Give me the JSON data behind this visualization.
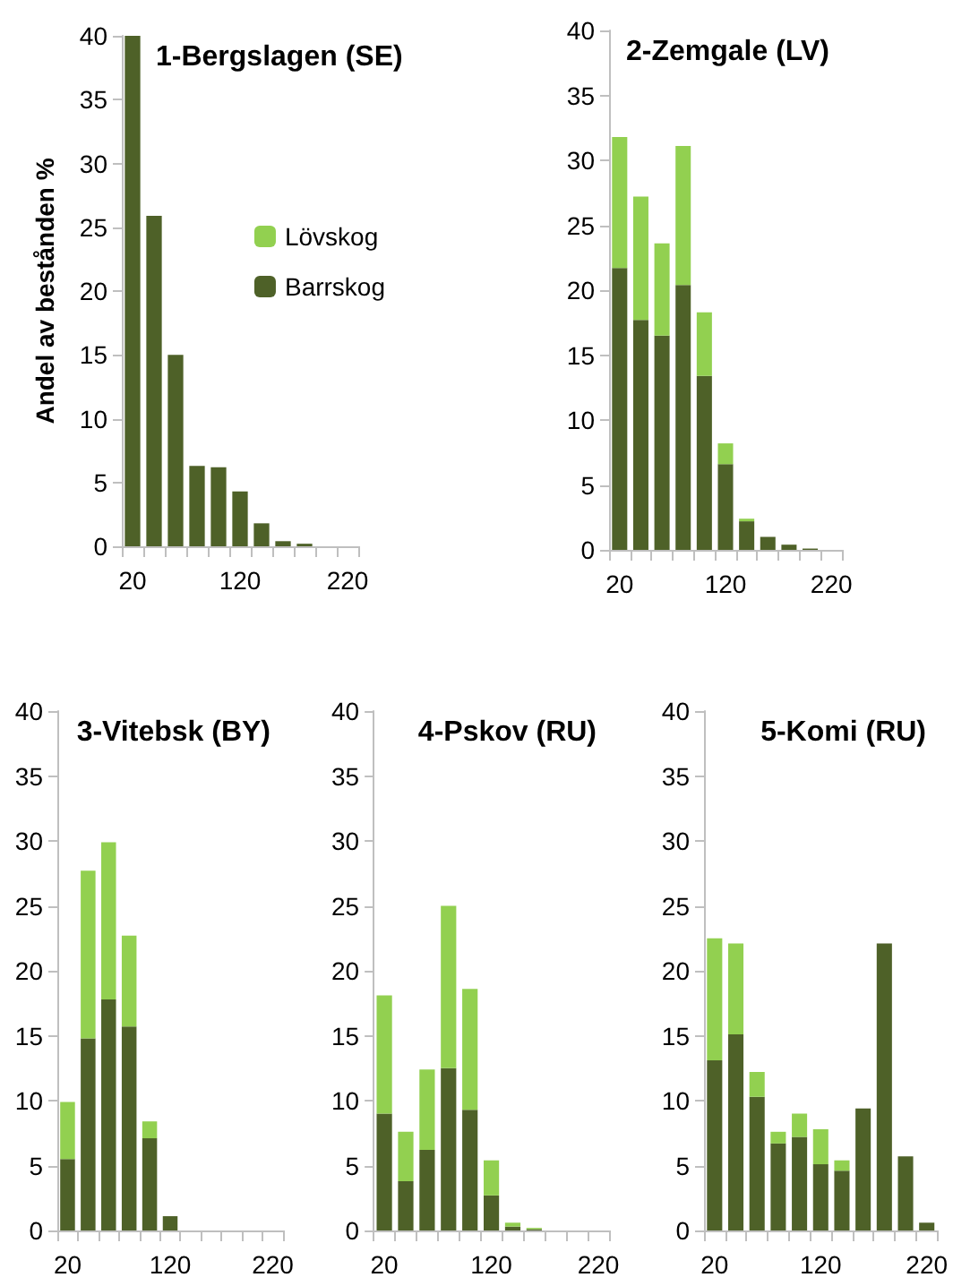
{
  "chart_data": [
    {
      "type": "bar",
      "title": "1-Bergslagen (SE)",
      "ylabel": "Andel av bestånden %",
      "stacked": true,
      "legend": "right",
      "categories": [
        "20",
        null,
        null,
        null,
        null,
        "120",
        null,
        null,
        null,
        null,
        "220"
      ],
      "ylim": [
        0,
        40
      ],
      "yticks": [
        0,
        5,
        10,
        15,
        20,
        25,
        30,
        35,
        40
      ],
      "series": [
        {
          "name": "Barrskog",
          "color": "#4e6128",
          "values": [
            40,
            25.9,
            15,
            6.3,
            6.2,
            4.3,
            1.8,
            0.4,
            0.2,
            0,
            0
          ]
        },
        {
          "name": "Lövskog",
          "color": "#92d050",
          "values": [
            0,
            0,
            0,
            0,
            0,
            0,
            0,
            0,
            0,
            0,
            0
          ]
        }
      ]
    },
    {
      "type": "bar",
      "title": "2-Zemgale (LV)",
      "stacked": true,
      "categories": [
        "20",
        null,
        null,
        null,
        null,
        "120",
        null,
        null,
        null,
        null,
        "220"
      ],
      "ylim": [
        0,
        40
      ],
      "yticks": [
        0,
        5,
        10,
        15,
        20,
        25,
        30,
        35,
        40
      ],
      "series": [
        {
          "color": "#4e6128",
          "values": [
            21.7,
            17.7,
            16.5,
            20.4,
            13.4,
            6.6,
            2.2,
            1.0,
            0.4,
            0.1,
            0
          ]
        },
        {
          "color": "#92d050",
          "values": [
            10.1,
            9.5,
            7.1,
            10.7,
            4.9,
            1.6,
            0.2,
            0,
            0,
            0,
            0
          ]
        }
      ]
    },
    {
      "type": "bar",
      "title": "3-Vitebsk (BY)",
      "stacked": true,
      "categories": [
        "20",
        null,
        null,
        null,
        null,
        "120",
        null,
        null,
        null,
        null,
        "220"
      ],
      "ylim": [
        0,
        40
      ],
      "yticks": [
        0,
        5,
        10,
        15,
        20,
        25,
        30,
        35,
        40
      ],
      "series": [
        {
          "color": "#4e6128",
          "values": [
            5.5,
            14.8,
            17.8,
            15.7,
            7.1,
            1.1,
            0,
            0,
            0,
            0,
            0
          ]
        },
        {
          "color": "#92d050",
          "values": [
            4.4,
            12.9,
            12.1,
            7.0,
            1.3,
            0,
            0,
            0,
            0,
            0,
            0
          ]
        }
      ]
    },
    {
      "type": "bar",
      "title": "4-Pskov (RU)",
      "stacked": true,
      "categories": [
        "20",
        null,
        null,
        null,
        null,
        "120",
        null,
        null,
        null,
        null,
        "220"
      ],
      "ylim": [
        0,
        40
      ],
      "yticks": [
        0,
        5,
        10,
        15,
        20,
        25,
        30,
        35,
        40
      ],
      "series": [
        {
          "color": "#4e6128",
          "values": [
            9.0,
            3.8,
            6.2,
            12.5,
            9.3,
            2.7,
            0.3,
            0.1,
            0,
            0,
            0
          ]
        },
        {
          "color": "#92d050",
          "values": [
            9.1,
            3.8,
            6.2,
            12.5,
            9.3,
            2.7,
            0.3,
            0.1,
            0,
            0,
            0
          ]
        }
      ]
    },
    {
      "type": "bar",
      "title": "5-Komi (RU)",
      "stacked": true,
      "categories": [
        "20",
        null,
        null,
        null,
        null,
        "120",
        null,
        null,
        null,
        null,
        "220"
      ],
      "ylim": [
        0,
        40
      ],
      "yticks": [
        0,
        5,
        10,
        15,
        20,
        25,
        30,
        35,
        40
      ],
      "series": [
        {
          "color": "#4e6128",
          "values": [
            13.1,
            15.1,
            10.3,
            6.7,
            7.2,
            5.1,
            4.6,
            9.4,
            22.1,
            5.7,
            0.6
          ]
        },
        {
          "color": "#92d050",
          "values": [
            9.4,
            7.0,
            1.9,
            0.9,
            1.8,
            2.7,
            0.8,
            0,
            0,
            0,
            0
          ]
        }
      ]
    }
  ]
}
